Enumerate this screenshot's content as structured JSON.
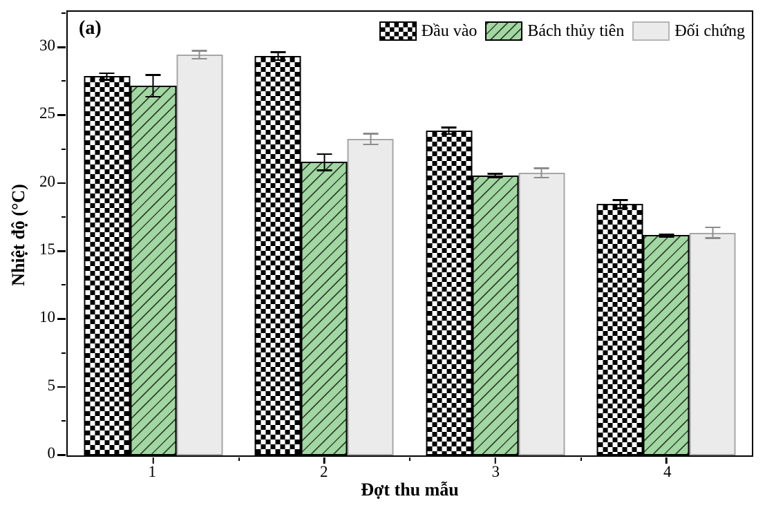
{
  "chart_data": {
    "type": "bar",
    "panel_label": "(a)",
    "title": "",
    "xlabel": "Đợt thu mẫu",
    "ylabel": "Nhiệt độ (°C)",
    "categories": [
      "1",
      "2",
      "3",
      "4"
    ],
    "series": [
      {
        "name": "Đầu vào",
        "pattern": "checker",
        "values": [
          27.9,
          29.4,
          23.9,
          18.5
        ],
        "errors": [
          0.25,
          0.3,
          0.25,
          0.3
        ],
        "error_color": "#000000"
      },
      {
        "name": "Bách thủy tiên",
        "pattern": "green-hatch",
        "values": [
          27.2,
          21.6,
          20.6,
          16.2
        ],
        "errors": [
          0.8,
          0.6,
          0.15,
          0.1
        ],
        "error_color": "#000000"
      },
      {
        "name": "Đối chứng",
        "pattern": "gray",
        "values": [
          29.5,
          23.3,
          20.8,
          16.4
        ],
        "errors": [
          0.3,
          0.4,
          0.35,
          0.4
        ],
        "error_color": "#8c8c8c"
      }
    ],
    "ylim": [
      0,
      32.6
    ],
    "yticks": [
      0,
      5,
      10,
      15,
      20,
      25,
      30
    ],
    "y_minor_step": 2.5,
    "grid": "off",
    "legend_position": "top-right-inside",
    "colors": {
      "bar_green_fill": "#a2d6a2",
      "bar_gray_fill": "#ebebeb",
      "bar_gray_border": "#a6a6a6",
      "gray_error": "#8c8c8c",
      "axis": "#000000",
      "background": "#ffffff"
    }
  }
}
